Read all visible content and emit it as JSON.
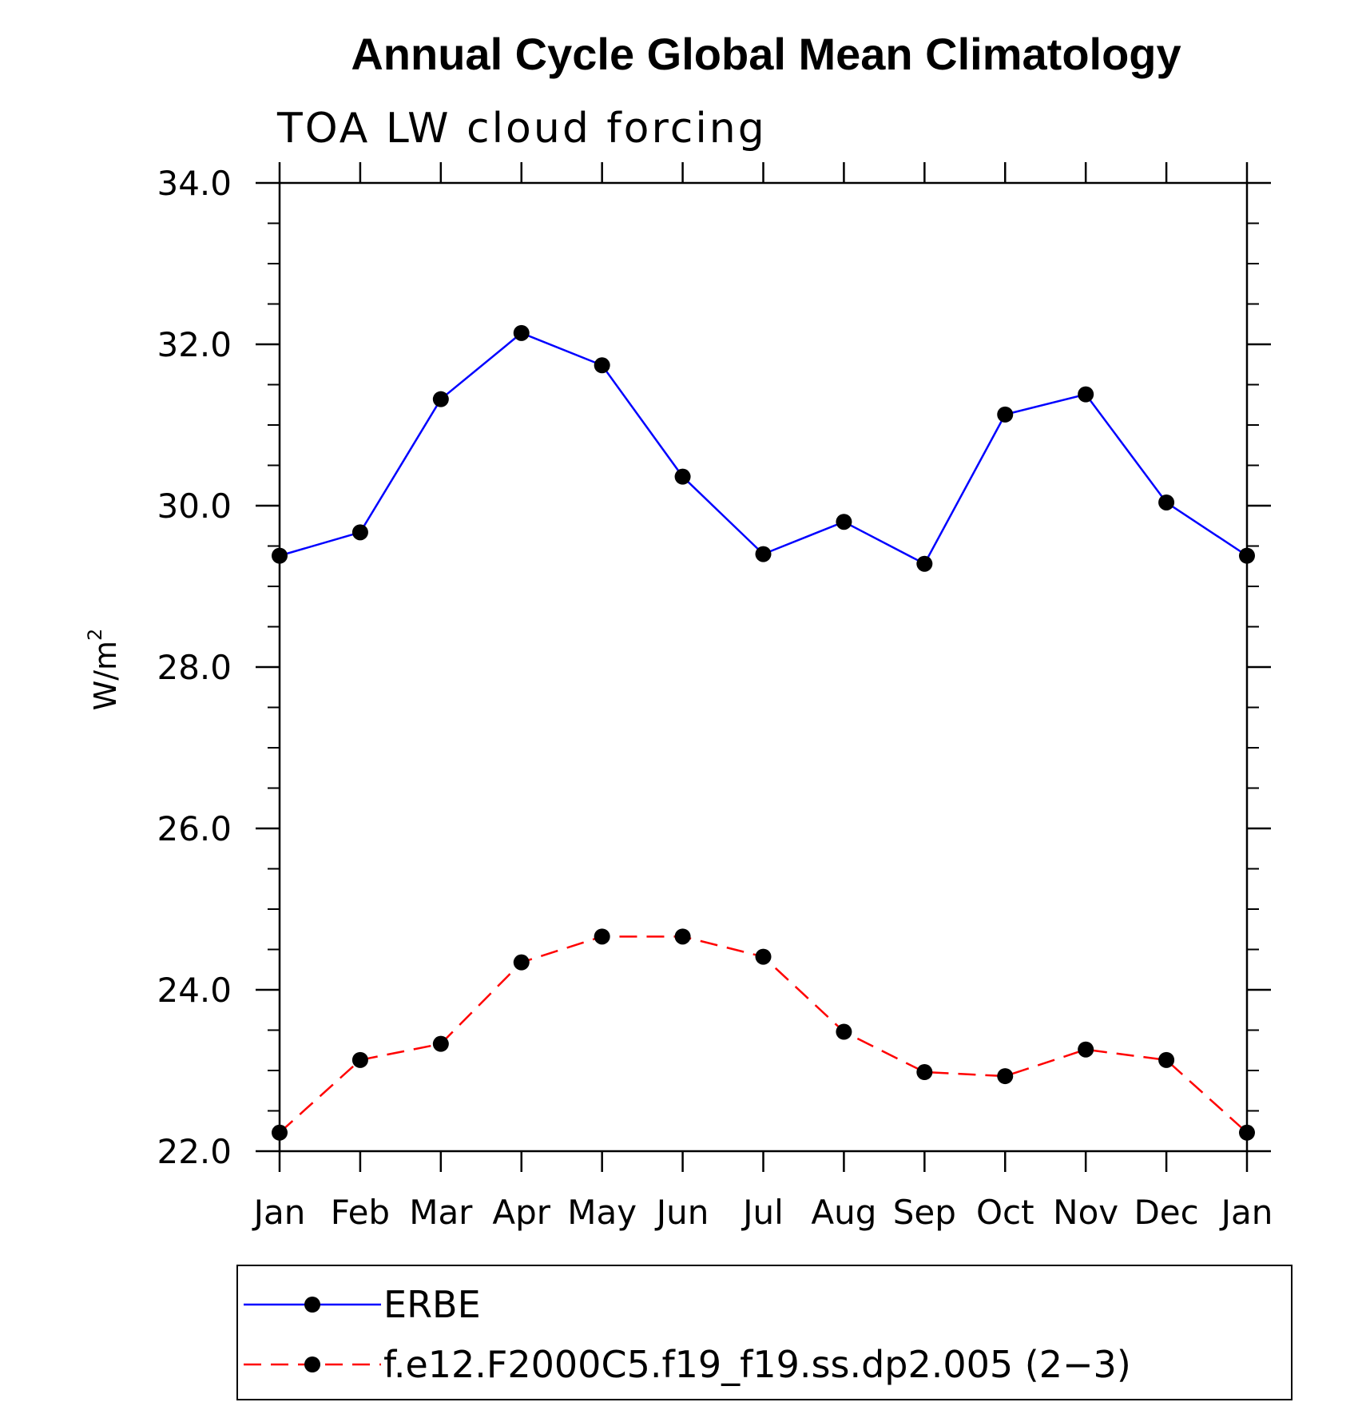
{
  "chart_data": {
    "type": "line",
    "title": "Annual Cycle Global Mean Climatology",
    "subtitle": "TOA LW cloud forcing",
    "ylabel": "W/m",
    "ylabel_superscript": "2",
    "xlabel": "",
    "categories": [
      "Jan",
      "Feb",
      "Mar",
      "Apr",
      "May",
      "Jun",
      "Jul",
      "Aug",
      "Sep",
      "Oct",
      "Nov",
      "Dec",
      "Jan"
    ],
    "ylim": [
      22.0,
      34.0
    ],
    "yticks": [
      "22.0",
      "24.0",
      "26.0",
      "28.0",
      "30.0",
      "32.0",
      "34.0"
    ],
    "yticks_values": [
      22,
      24,
      26,
      28,
      30,
      32,
      34
    ],
    "y_minor_step": 0.5,
    "grid": false,
    "legend_position": "bottom",
    "series": [
      {
        "name": "ERBE",
        "color": "#0000ff",
        "line_style": "solid",
        "marker": "filled-circle",
        "values": [
          29.38,
          29.67,
          31.32,
          32.14,
          31.74,
          30.36,
          29.4,
          29.8,
          29.28,
          31.13,
          31.38,
          30.04,
          29.38
        ]
      },
      {
        "name": "f.e12.F2000C5.f19_f19.ss.dp2.005 (2−3)",
        "color": "#ff0000",
        "line_style": "dashed",
        "marker": "filled-circle",
        "values": [
          22.23,
          23.13,
          23.33,
          24.34,
          24.66,
          24.66,
          24.41,
          23.48,
          22.98,
          22.93,
          23.26,
          23.13,
          22.23
        ]
      }
    ]
  }
}
